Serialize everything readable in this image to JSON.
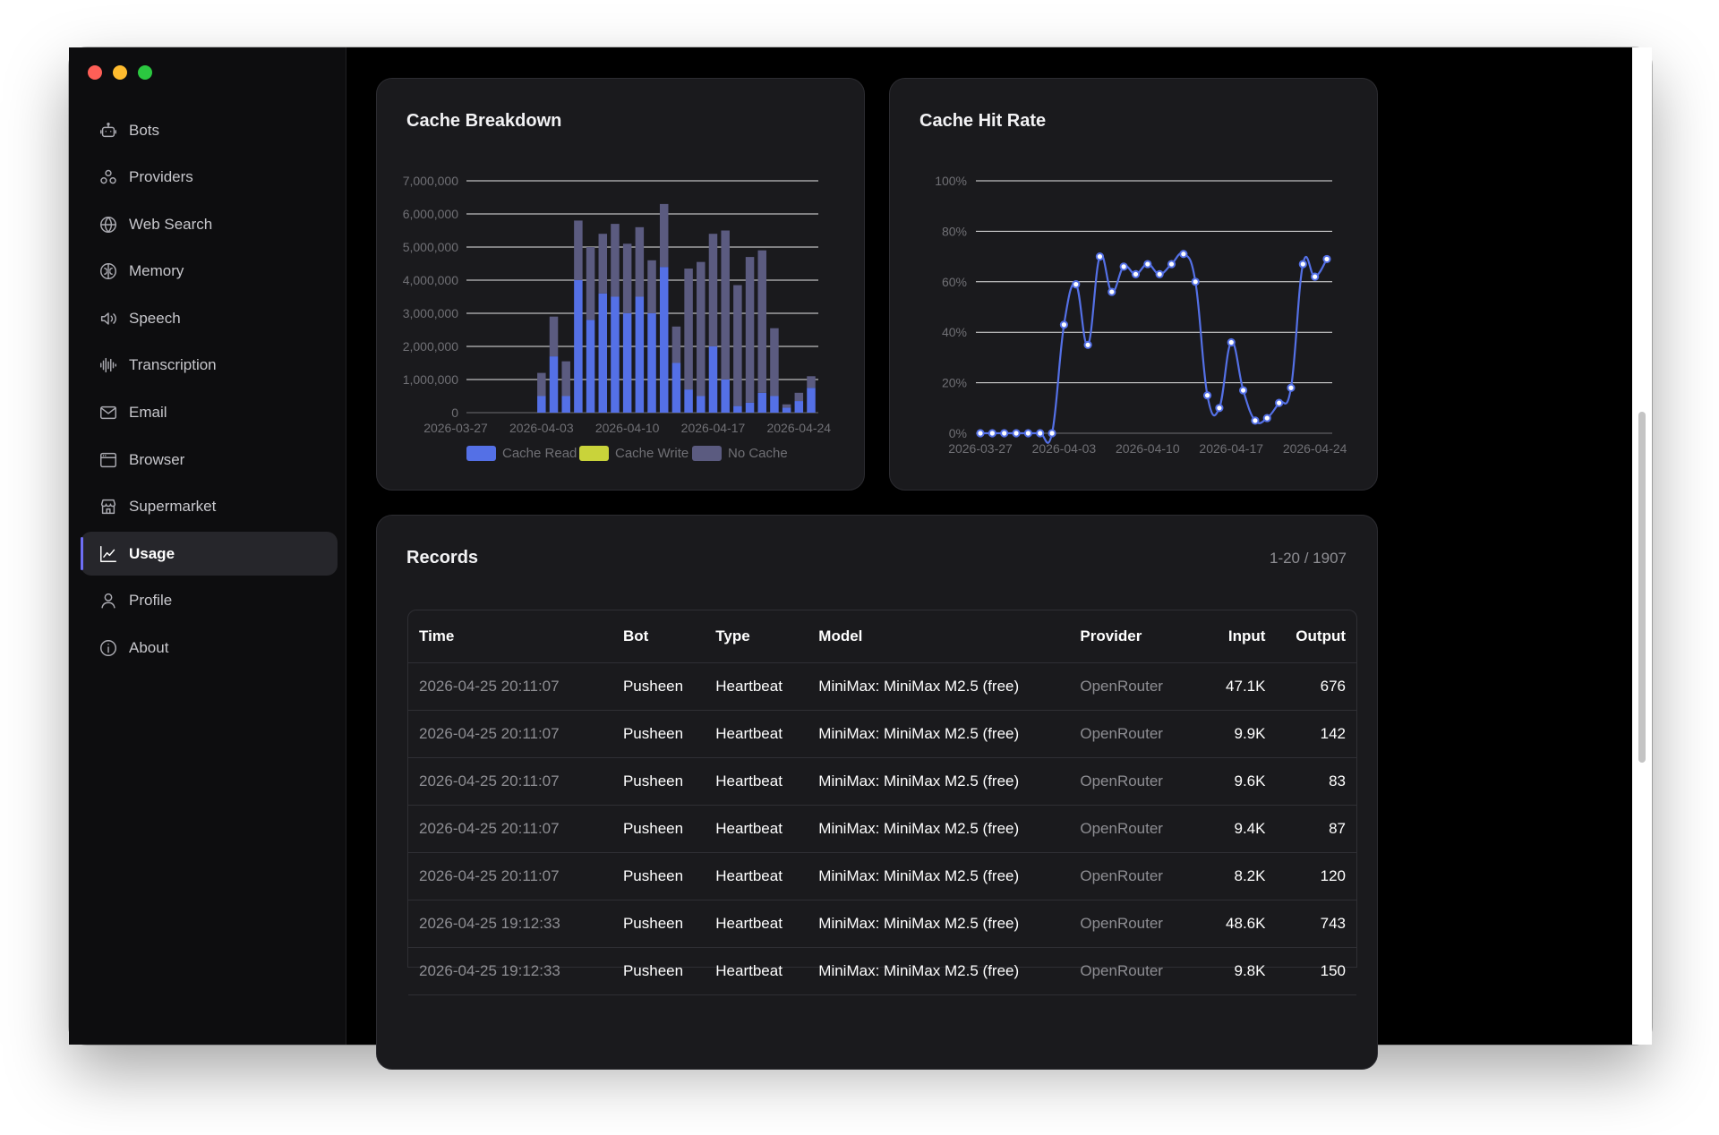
{
  "sidebar": {
    "items": [
      {
        "label": "Bots",
        "icon": "bot-icon"
      },
      {
        "label": "Providers",
        "icon": "providers-icon"
      },
      {
        "label": "Web Search",
        "icon": "globe-icon"
      },
      {
        "label": "Memory",
        "icon": "brain-icon"
      },
      {
        "label": "Speech",
        "icon": "speaker-icon"
      },
      {
        "label": "Transcription",
        "icon": "waveform-icon"
      },
      {
        "label": "Email",
        "icon": "mail-icon"
      },
      {
        "label": "Browser",
        "icon": "browser-icon"
      },
      {
        "label": "Supermarket",
        "icon": "store-icon"
      },
      {
        "label": "Usage",
        "icon": "chart-line-icon",
        "active": true
      },
      {
        "label": "Profile",
        "icon": "user-icon"
      },
      {
        "label": "About",
        "icon": "info-icon"
      }
    ]
  },
  "cache_breakdown": {
    "title": "Cache Breakdown"
  },
  "cache_hit_rate": {
    "title": "Cache Hit Rate"
  },
  "chart_data": [
    {
      "type": "bar",
      "title": "Cache Breakdown",
      "stacked": true,
      "ylim": [
        0,
        7000000
      ],
      "yticks": [
        "0",
        "1,000,000",
        "2,000,000",
        "3,000,000",
        "4,000,000",
        "5,000,000",
        "6,000,000",
        "7,000,000"
      ],
      "xticks": [
        "2026-03-27",
        "2026-04-03",
        "2026-04-10",
        "2026-04-17",
        "2026-04-24"
      ],
      "categories": [
        "2026-03-27",
        "2026-03-28",
        "2026-03-29",
        "2026-03-30",
        "2026-03-31",
        "2026-04-01",
        "2026-04-02",
        "2026-04-03",
        "2026-04-04",
        "2026-04-05",
        "2026-04-06",
        "2026-04-07",
        "2026-04-08",
        "2026-04-09",
        "2026-04-10",
        "2026-04-11",
        "2026-04-12",
        "2026-04-13",
        "2026-04-14",
        "2026-04-15",
        "2026-04-16",
        "2026-04-17",
        "2026-04-18",
        "2026-04-19",
        "2026-04-20",
        "2026-04-21",
        "2026-04-22",
        "2026-04-23",
        "2026-04-24",
        "2026-04-25"
      ],
      "legend_position": "bottom",
      "series": [
        {
          "name": "Cache Read",
          "color": "#5470e6",
          "values": [
            0,
            0,
            0,
            0,
            0,
            0,
            0,
            500000,
            1700000,
            500000,
            4000000,
            2800000,
            3600000,
            3500000,
            3000000,
            3500000,
            3000000,
            4400000,
            1500000,
            700000,
            500000,
            2000000,
            1000000,
            200000,
            300000,
            600000,
            500000,
            150000,
            350000,
            750000
          ]
        },
        {
          "name": "Cache Write",
          "color": "#c9d33a",
          "values": [
            0,
            0,
            0,
            0,
            0,
            0,
            0,
            0,
            0,
            0,
            0,
            0,
            0,
            0,
            0,
            0,
            0,
            0,
            0,
            0,
            0,
            0,
            0,
            0,
            0,
            0,
            0,
            0,
            0,
            0
          ]
        },
        {
          "name": "No Cache",
          "color": "#5b5b80",
          "values": [
            0,
            0,
            0,
            0,
            0,
            0,
            0,
            700000,
            1200000,
            1050000,
            1800000,
            2200000,
            1800000,
            2200000,
            2100000,
            2100000,
            1600000,
            1900000,
            1100000,
            3650000,
            4050000,
            3400000,
            4500000,
            3650000,
            4400000,
            4300000,
            2050000,
            100000,
            250000,
            350000
          ]
        }
      ]
    },
    {
      "type": "line",
      "title": "Cache Hit Rate",
      "ylim": [
        0,
        100
      ],
      "yticks": [
        "0%",
        "20%",
        "40%",
        "60%",
        "80%",
        "100%"
      ],
      "xticks": [
        "2026-03-27",
        "2026-04-03",
        "2026-04-10",
        "2026-04-17",
        "2026-04-24"
      ],
      "categories": [
        "2026-03-27",
        "2026-03-28",
        "2026-03-29",
        "2026-03-30",
        "2026-03-31",
        "2026-04-01",
        "2026-04-02",
        "2026-04-03",
        "2026-04-04",
        "2026-04-05",
        "2026-04-06",
        "2026-04-07",
        "2026-04-08",
        "2026-04-09",
        "2026-04-10",
        "2026-04-11",
        "2026-04-12",
        "2026-04-13",
        "2026-04-14",
        "2026-04-15",
        "2026-04-16",
        "2026-04-17",
        "2026-04-18",
        "2026-04-19",
        "2026-04-20",
        "2026-04-21",
        "2026-04-22",
        "2026-04-23",
        "2026-04-24",
        "2026-04-25"
      ],
      "series": [
        {
          "name": "Cache Hit Rate",
          "color": "#5470e6",
          "values": [
            0,
            0,
            0,
            0,
            0,
            0,
            0,
            43,
            59,
            35,
            70,
            56,
            66,
            63,
            67,
            63,
            67,
            71,
            60,
            15,
            10,
            36,
            17,
            5,
            6,
            12,
            18,
            67,
            62,
            69
          ]
        }
      ]
    }
  ],
  "records": {
    "title": "Records",
    "count": "1-20 / 1907",
    "columns": [
      "Time",
      "Bot",
      "Type",
      "Model",
      "Provider",
      "Input",
      "Output"
    ],
    "rows": [
      [
        "2026-04-25 20:11:07",
        "Pusheen",
        "Heartbeat",
        "MiniMax: MiniMax M2.5 (free)",
        "OpenRouter",
        "47.1K",
        "676"
      ],
      [
        "2026-04-25 20:11:07",
        "Pusheen",
        "Heartbeat",
        "MiniMax: MiniMax M2.5 (free)",
        "OpenRouter",
        "9.9K",
        "142"
      ],
      [
        "2026-04-25 20:11:07",
        "Pusheen",
        "Heartbeat",
        "MiniMax: MiniMax M2.5 (free)",
        "OpenRouter",
        "9.6K",
        "83"
      ],
      [
        "2026-04-25 20:11:07",
        "Pusheen",
        "Heartbeat",
        "MiniMax: MiniMax M2.5 (free)",
        "OpenRouter",
        "9.4K",
        "87"
      ],
      [
        "2026-04-25 20:11:07",
        "Pusheen",
        "Heartbeat",
        "MiniMax: MiniMax M2.5 (free)",
        "OpenRouter",
        "8.2K",
        "120"
      ],
      [
        "2026-04-25 19:12:33",
        "Pusheen",
        "Heartbeat",
        "MiniMax: MiniMax M2.5 (free)",
        "OpenRouter",
        "48.6K",
        "743"
      ],
      [
        "2026-04-25 19:12:33",
        "Pusheen",
        "Heartbeat",
        "MiniMax: MiniMax M2.5 (free)",
        "OpenRouter",
        "9.8K",
        "150"
      ]
    ]
  }
}
